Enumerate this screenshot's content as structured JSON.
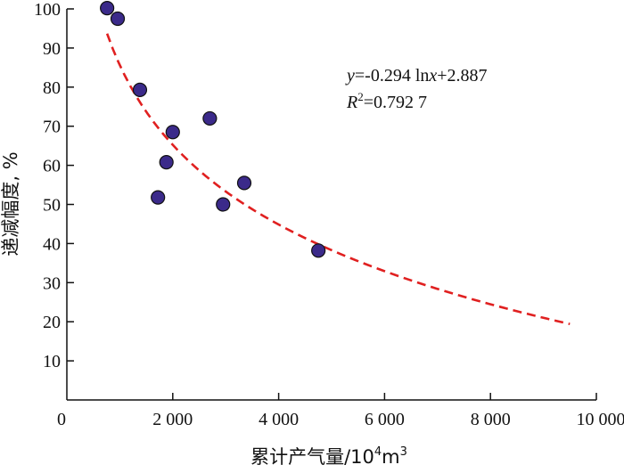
{
  "chart_data": {
    "type": "scatter",
    "xlabel_main": "累计产气量/10",
    "xlabel_exp": "4",
    "xlabel_tail": "m",
    "xlabel_exp2": "3",
    "ylabel": "递减幅度, %",
    "xlim": [
      0,
      10000
    ],
    "ylim": [
      0,
      100
    ],
    "x_ticks": [
      {
        "value": 0,
        "label": "0"
      },
      {
        "value": 2000,
        "label": "2 000"
      },
      {
        "value": 4000,
        "label": "4 000"
      },
      {
        "value": 6000,
        "label": "6 000"
      },
      {
        "value": 8000,
        "label": "8 000"
      },
      {
        "value": 10000,
        "label": "10 000"
      }
    ],
    "y_ticks": [
      {
        "value": 10,
        "label": "10"
      },
      {
        "value": 20,
        "label": "20"
      },
      {
        "value": 30,
        "label": "30"
      },
      {
        "value": 40,
        "label": "40"
      },
      {
        "value": 50,
        "label": "50"
      },
      {
        "value": 60,
        "label": "60"
      },
      {
        "value": 70,
        "label": "70"
      },
      {
        "value": 80,
        "label": "80"
      },
      {
        "value": 90,
        "label": "90"
      },
      {
        "value": 100,
        "label": "100"
      }
    ],
    "points": [
      {
        "x": 760,
        "y": 100.2
      },
      {
        "x": 960,
        "y": 97.5
      },
      {
        "x": 1380,
        "y": 79.3
      },
      {
        "x": 1720,
        "y": 51.8
      },
      {
        "x": 1880,
        "y": 60.8
      },
      {
        "x": 2000,
        "y": 68.5
      },
      {
        "x": 2700,
        "y": 72.0
      },
      {
        "x": 2950,
        "y": 50.0
      },
      {
        "x": 3350,
        "y": 55.5
      },
      {
        "x": 4750,
        "y": 38.2
      }
    ],
    "trendline": {
      "style": "dashed",
      "color": "#e02020",
      "coef_a": -0.294,
      "coef_b": 2.887,
      "x_from": 760,
      "x_to": 9500
    },
    "equation": {
      "y_var": "y",
      "eq_middle": "=-0.294 ln",
      "x_var": "x",
      "eq_end": "+2.887",
      "r_var": "R",
      "r_exp": "2",
      "r_value": "=0.792 7"
    },
    "colors": {
      "marker_fill": "#3b2a8a",
      "marker_stroke": "#111111",
      "axis": "#111111"
    }
  }
}
